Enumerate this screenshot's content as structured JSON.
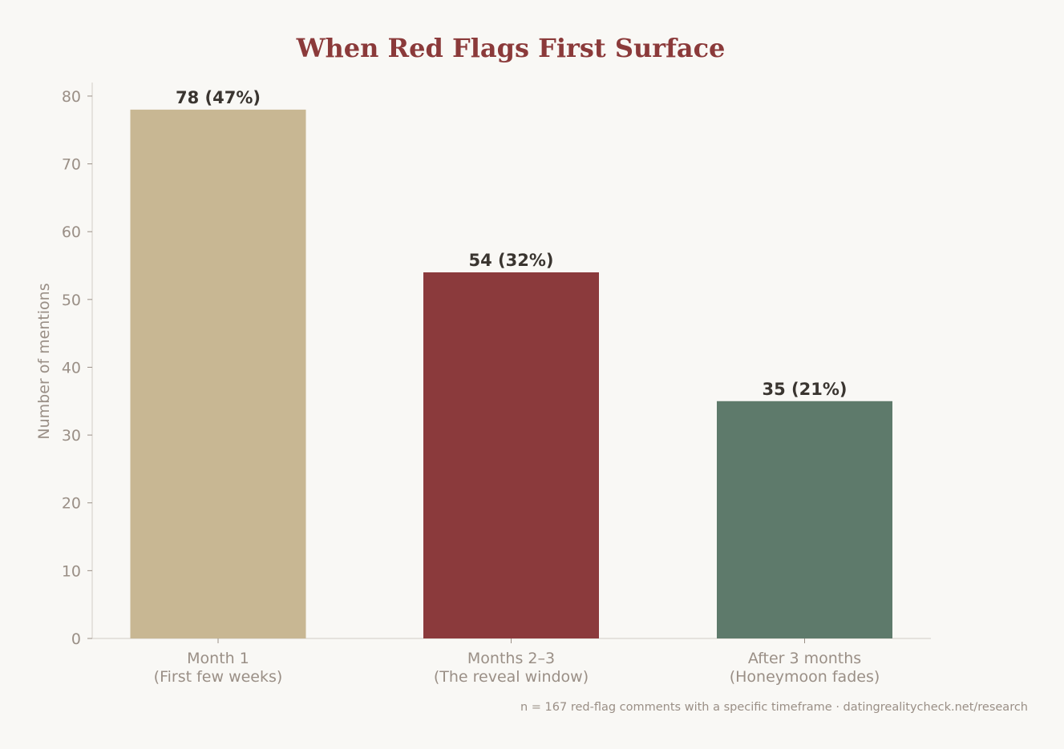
{
  "colors": {
    "background": "#f9f8f5",
    "title": "#8b3a3a",
    "axis": "#d9d5cf",
    "tick_text": "#9a8f86",
    "bar_label": "#3a3530"
  },
  "footnote": "n = 167 red-flag comments with a specific timeframe · datingrealitycheck.net/research",
  "chart_data": {
    "type": "bar",
    "title": "When Red Flags First Surface",
    "xlabel": "",
    "ylabel": "Number of mentions",
    "ylim": [
      0,
      82
    ],
    "yticks": [
      0,
      10,
      20,
      30,
      40,
      50,
      60,
      70,
      80
    ],
    "grid": false,
    "categories": [
      [
        "Month 1",
        "(First few weeks)"
      ],
      [
        "Months 2–3",
        "(The reveal window)"
      ],
      [
        "After 3 months",
        "(Honeymoon fades)"
      ]
    ],
    "values": [
      78,
      54,
      35
    ],
    "percentages": [
      47,
      32,
      21
    ],
    "data_labels": [
      "78 (47%)",
      "54 (32%)",
      "35 (21%)"
    ],
    "bar_colors": [
      "#c8b793",
      "#8b3a3c",
      "#5e7a6b"
    ]
  }
}
